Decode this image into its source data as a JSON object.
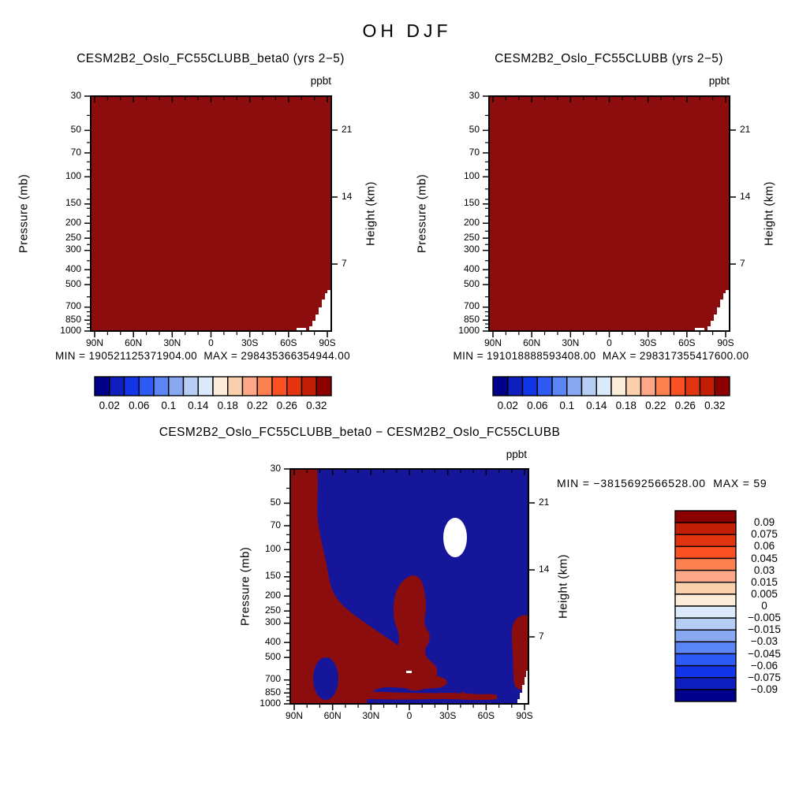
{
  "page_title": "OH DJF",
  "panels": {
    "top_left": {
      "title": "CESM2B2_Oslo_FC55CLUBB_beta0 (yrs 2−5)",
      "units": "ppbt",
      "pressure_axis_label": "Pressure (mb)",
      "height_axis_label": "Height (km)",
      "minmax": "MIN = 190521125371904.00  MAX = 298435366354944.00"
    },
    "top_right": {
      "title": "CESM2B2_Oslo_FC55CLUBB (yrs 2−5)",
      "units": "ppbt",
      "pressure_axis_label": "Pressure (mb)",
      "height_axis_label": "Height (km)",
      "minmax": "MIN = 191018888593408.00  MAX = 298317355417600.00"
    },
    "bottom": {
      "title": "CESM2B2_Oslo_FC55CLUBB_beta0 − CESM2B2_Oslo_FC55CLUBB",
      "units": "ppbt",
      "pressure_axis_label": "Pressure (mb)",
      "height_axis_label": "Height (km)",
      "minmax": "MIN = −3815692566528.00  MAX = 59"
    }
  },
  "axes": {
    "pressure_ticks": [
      30,
      50,
      70,
      100,
      150,
      200,
      250,
      300,
      400,
      500,
      700,
      850,
      1000
    ],
    "pressure_minor_ticks": [
      40,
      60,
      80,
      90,
      120,
      140,
      160,
      180,
      225,
      275,
      350,
      450,
      600,
      750,
      800,
      900,
      950
    ],
    "lat_labels": [
      "90N",
      "60N",
      "30N",
      "0",
      "30S",
      "60S",
      "90S"
    ],
    "height_ticks": [
      21,
      14,
      7
    ]
  },
  "colorbar_horizontal": {
    "labels": [
      "0.02",
      "0.06",
      "0.1",
      "0.14",
      "0.18",
      "0.22",
      "0.26",
      "0.32"
    ],
    "colors": [
      "#00008B",
      "#0F1FBF",
      "#1335E8",
      "#2E5BF5",
      "#5A85F5",
      "#88A8F2",
      "#B6CEF4",
      "#DAEAFB",
      "#FCEDDA",
      "#F9CFAC",
      "#FCA888",
      "#FD8150",
      "#FB5022",
      "#E33410",
      "#C21E05",
      "#8B0000"
    ]
  },
  "colorbar_vertical": {
    "labels": [
      "0.09",
      "0.075",
      "0.06",
      "0.045",
      "0.03",
      "0.015",
      "0.005",
      "0",
      "−0.005",
      "−0.015",
      "−0.03",
      "−0.045",
      "−0.06",
      "−0.075",
      "−0.09"
    ],
    "colors": [
      "#8B0000",
      "#C21E05",
      "#E33410",
      "#FB5022",
      "#FD8150",
      "#FCA888",
      "#F9CFAC",
      "#FCEDDA",
      "#DAEAFB",
      "#B6CEF4",
      "#88A8F2",
      "#5A85F5",
      "#2E5BF5",
      "#1335E8",
      "#0F1FBF",
      "#00008B"
    ]
  },
  "fills": {
    "background": "#FFFFFF",
    "frame": "#000000",
    "field_red": "#8C0D0D",
    "field_blue": "#16169B",
    "terrain_white": "#FFFFFF"
  },
  "chart_data": [
    {
      "type": "heatmap",
      "title": "CESM2B2_Oslo_FC55CLUBB_beta0 (yrs 2−5)",
      "subtitle_units": "ppbt",
      "xlabel": "",
      "ylabel": "Pressure (mb)",
      "ylabel_right": "Height (km)",
      "x_ticks": [
        "90N",
        "60N",
        "30N",
        "0",
        "30S",
        "60S",
        "90S"
      ],
      "y_ticks_mb": [
        30,
        50,
        70,
        100,
        150,
        200,
        250,
        300,
        400,
        500,
        700,
        850,
        1000
      ],
      "right_ticks_km": [
        21,
        14,
        7
      ],
      "y_scale": "log",
      "y_range_mb": [
        30,
        1000
      ],
      "min": 190521125371904.0,
      "max": 298435366354944.0,
      "colorbar_levels": [
        0.02,
        0.06,
        0.1,
        0.14,
        0.18,
        0.22,
        0.26,
        0.32
      ],
      "n_color_segments": 16,
      "legend_position": "below",
      "grid": false,
      "field_description": "entire latitude-pressure cross-section saturated at the top color (dark red); white surface-topography steps near 90S below ~700 mb"
    },
    {
      "type": "heatmap",
      "title": "CESM2B2_Oslo_FC55CLUBB (yrs 2−5)",
      "subtitle_units": "ppbt",
      "xlabel": "",
      "ylabel": "Pressure (mb)",
      "ylabel_right": "Height (km)",
      "x_ticks": [
        "90N",
        "60N",
        "30N",
        "0",
        "30S",
        "60S",
        "90S"
      ],
      "y_ticks_mb": [
        30,
        50,
        70,
        100,
        150,
        200,
        250,
        300,
        400,
        500,
        700,
        850,
        1000
      ],
      "right_ticks_km": [
        21,
        14,
        7
      ],
      "y_scale": "log",
      "y_range_mb": [
        30,
        1000
      ],
      "min": 191018888593408.0,
      "max": 298317355417600.0,
      "colorbar_levels": [
        0.02,
        0.06,
        0.1,
        0.14,
        0.18,
        0.22,
        0.26,
        0.32
      ],
      "n_color_segments": 16,
      "legend_position": "below",
      "grid": false,
      "field_description": "entire latitude-pressure cross-section saturated at the top color (dark red); white surface-topography steps near 90S below ~700 mb"
    },
    {
      "type": "heatmap",
      "title": "CESM2B2_Oslo_FC55CLUBB_beta0 − CESM2B2_Oslo_FC55CLUBB",
      "subtitle_units": "ppbt",
      "xlabel": "",
      "ylabel": "Pressure (mb)",
      "ylabel_right": "Height (km)",
      "x_ticks": [
        "90N",
        "60N",
        "30N",
        "0",
        "30S",
        "60S",
        "90S"
      ],
      "y_ticks_mb": [
        30,
        50,
        70,
        100,
        150,
        200,
        250,
        300,
        400,
        500,
        700,
        850,
        1000
      ],
      "right_ticks_km": [
        21,
        14,
        7
      ],
      "y_scale": "log",
      "y_range_mb": [
        30,
        1000
      ],
      "min": -3815692566528.0,
      "max_display": "59",
      "colorbar_levels": [
        0.09,
        0.075,
        0.06,
        0.045,
        0.03,
        0.015,
        0.005,
        0,
        -0.005,
        -0.015,
        -0.03,
        -0.045,
        -0.06,
        -0.075,
        -0.09
      ],
      "n_color_segments": 16,
      "legend_position": "right-vertical",
      "grid": false,
      "field_description": "difference field saturated at extremes: dark red (positive) over the Arctic column, NH mid-troposphere wedge, a tongue near 0-10S from ~150 mb to the surface, right-edge strip near 90S at 300-500 mb and thin near-surface band; dark blue (negative) elsewhere; white near-zero blob near 35S at 70-100 mb; white terrain steps near 90S surface"
    }
  ]
}
